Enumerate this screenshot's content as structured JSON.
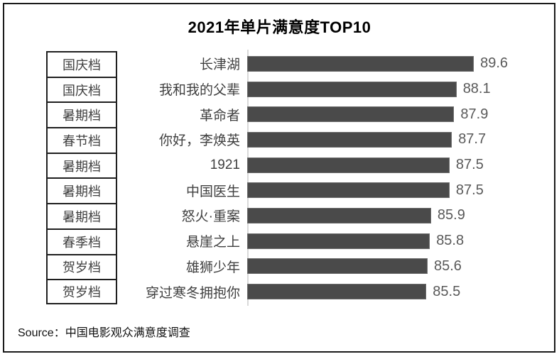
{
  "title": "2021年单片满意度TOP10",
  "source": "Source：中国电影观众满意度调查",
  "colors": {
    "bar": "#4a4a4a",
    "axis_line": "#d9d9d9",
    "value_text": "#595959",
    "label_text": "#404040",
    "frame_border": "#1a1a1a"
  },
  "chart_data": {
    "type": "bar",
    "orientation": "horizontal",
    "title": "2021年单片满意度TOP10",
    "legend": "none",
    "grid": false,
    "value_labels": true,
    "xlim": [
      70,
      95
    ],
    "rows": [
      {
        "slot": "国庆档",
        "film": "长津湖",
        "value": 89.6
      },
      {
        "slot": "国庆档",
        "film": "我和我的父辈",
        "value": 88.1
      },
      {
        "slot": "暑期档",
        "film": "革命者",
        "value": 87.9
      },
      {
        "slot": "春节档",
        "film": "你好，李焕英",
        "value": 87.7
      },
      {
        "slot": "暑期档",
        "film": "1921",
        "value": 87.5
      },
      {
        "slot": "暑期档",
        "film": "中国医生",
        "value": 87.5
      },
      {
        "slot": "暑期档",
        "film": "怒火·重案",
        "value": 85.9
      },
      {
        "slot": "春季档",
        "film": "悬崖之上",
        "value": 85.8
      },
      {
        "slot": "贺岁档",
        "film": "雄狮少年",
        "value": 85.6
      },
      {
        "slot": "贺岁档",
        "film": "穿过寒冬拥抱你",
        "value": 85.5
      }
    ]
  }
}
